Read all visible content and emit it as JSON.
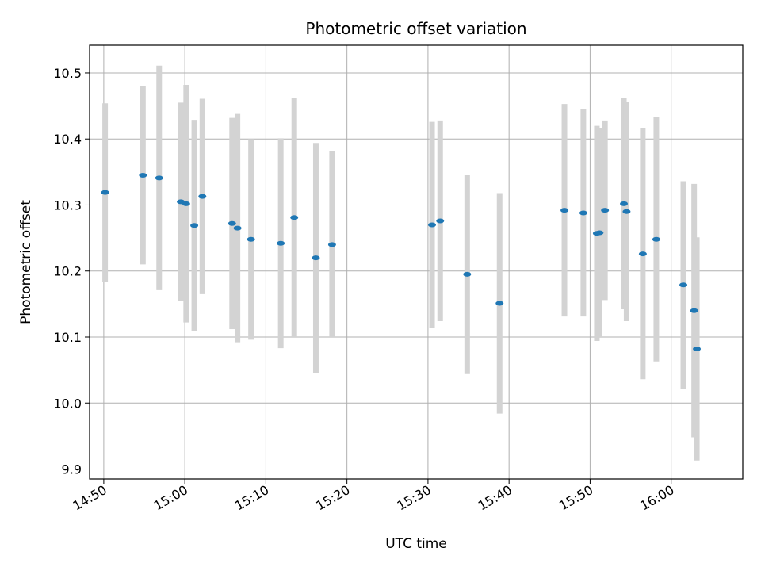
{
  "chart_data": {
    "type": "scatter",
    "title": "Photometric offset variation",
    "xlabel": "UTC time",
    "ylabel": "Photometric offset",
    "x_ticks": [
      "14:50",
      "15:00",
      "15:10",
      "15:20",
      "15:30",
      "15:40",
      "15:50",
      "16:00"
    ],
    "y_ticks": [
      9.9,
      10.0,
      10.1,
      10.2,
      10.3,
      10.4,
      10.5
    ],
    "xlim": [
      "14:48:15",
      "16:08:50"
    ],
    "ylim": [
      9.885,
      10.542
    ],
    "grid": true,
    "marker_color": "#1f77b4",
    "errorbar_color": "#d3d3d3",
    "points": [
      {
        "x": "14:50:10",
        "y": 10.319,
        "err": 0.135
      },
      {
        "x": "14:54:50",
        "y": 10.345,
        "err": 0.135
      },
      {
        "x": "14:56:50",
        "y": 10.341,
        "err": 0.17
      },
      {
        "x": "14:59:30",
        "y": 10.305,
        "err": 0.15
      },
      {
        "x": "15:00:10",
        "y": 10.302,
        "err": 0.18
      },
      {
        "x": "15:01:10",
        "y": 10.269,
        "err": 0.16
      },
      {
        "x": "15:02:10",
        "y": 10.313,
        "err": 0.148
      },
      {
        "x": "15:05:50",
        "y": 10.272,
        "err": 0.16
      },
      {
        "x": "15:06:30",
        "y": 10.265,
        "err": 0.173
      },
      {
        "x": "15:08:10",
        "y": 10.248,
        "err": 0.152
      },
      {
        "x": "15:11:50",
        "y": 10.242,
        "err": 0.159
      },
      {
        "x": "15:13:30",
        "y": 10.281,
        "err": 0.181
      },
      {
        "x": "15:16:10",
        "y": 10.22,
        "err": 0.174
      },
      {
        "x": "15:18:10",
        "y": 10.24,
        "err": 0.141
      },
      {
        "x": "15:30:30",
        "y": 10.27,
        "err": 0.156
      },
      {
        "x": "15:31:30",
        "y": 10.276,
        "err": 0.152
      },
      {
        "x": "15:34:50",
        "y": 10.195,
        "err": 0.15
      },
      {
        "x": "15:38:50",
        "y": 10.151,
        "err": 0.167
      },
      {
        "x": "15:46:50",
        "y": 10.292,
        "err": 0.161
      },
      {
        "x": "15:49:10",
        "y": 10.288,
        "err": 0.157
      },
      {
        "x": "15:50:50",
        "y": 10.257,
        "err": 0.163
      },
      {
        "x": "15:51:10",
        "y": 10.258,
        "err": 0.159
      },
      {
        "x": "15:51:50",
        "y": 10.292,
        "err": 0.136
      },
      {
        "x": "15:54:10",
        "y": 10.302,
        "err": 0.16
      },
      {
        "x": "15:54:30",
        "y": 10.29,
        "err": 0.166
      },
      {
        "x": "15:56:30",
        "y": 10.226,
        "err": 0.19
      },
      {
        "x": "15:58:10",
        "y": 10.248,
        "err": 0.185
      },
      {
        "x": "16:01:30",
        "y": 10.179,
        "err": 0.157
      },
      {
        "x": "16:02:50",
        "y": 10.14,
        "err": 0.192
      },
      {
        "x": "16:03:10",
        "y": 10.082,
        "err": 0.169
      }
    ]
  }
}
